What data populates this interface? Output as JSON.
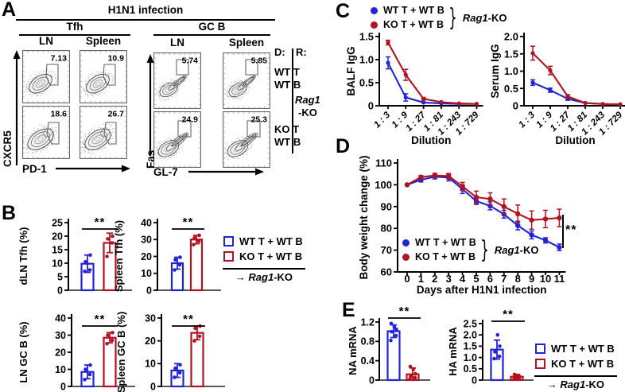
{
  "colors": {
    "wt": "#2222d8",
    "ko": "#b31220",
    "axis": "#000000",
    "baseline": "#595959"
  },
  "panel_a": {
    "label": "A",
    "title": "H1N1 infection",
    "group1": "Tfh",
    "group2": "GC B",
    "cols": [
      "LN",
      "Spleen",
      "LN",
      "Spleen"
    ],
    "axes": [
      {
        "y": "CXCR5",
        "x": "PD-1"
      },
      {
        "y": "Fas",
        "x": "GL-7"
      }
    ],
    "donor_header": "D:",
    "recipient_header": "R:",
    "row1": [
      "WT T",
      "WT B"
    ],
    "row2": [
      "KO T",
      "WT B"
    ],
    "recipient_gene": "Rag1",
    "recipient_suffix": "-KO",
    "plots": [
      {
        "name": "tfh-ln-wt",
        "kind": "tfh",
        "size": "sm",
        "value": "7.13"
      },
      {
        "name": "tfh-spleen-wt",
        "kind": "tfh",
        "size": "sm",
        "value": "10.9"
      },
      {
        "name": "gcb-ln-wt",
        "kind": "gcb",
        "size": "sm",
        "value": "5.74"
      },
      {
        "name": "gcb-spleen-wt",
        "kind": "gcb",
        "size": "sm",
        "value": "5.85"
      },
      {
        "name": "tfh-ln-ko",
        "kind": "tfh",
        "size": "lg",
        "value": "18.6"
      },
      {
        "name": "tfh-spleen-ko",
        "kind": "tfh",
        "size": "lg",
        "value": "26.7"
      },
      {
        "name": "gcb-ln-ko",
        "kind": "gcb",
        "size": "lg",
        "value": "24.9"
      },
      {
        "name": "gcb-spleen-ko",
        "kind": "gcb",
        "size": "lg",
        "value": "25.3"
      }
    ]
  },
  "panel_b": {
    "label": "B"
  },
  "panel_c": {
    "label": "C"
  },
  "panel_d": {
    "label": "D"
  },
  "panel_e": {
    "label": "E"
  },
  "legend_square": {
    "item1": "WT T + WT B",
    "item2": "KO T + WT B",
    "arrow": "→",
    "gene": "Rag1",
    "suffix": "-KO"
  },
  "legend_dot": {
    "item1": "WT T + WT B",
    "item2": "KO T + WT B",
    "brace": "}",
    "gene": "Rag1",
    "suffix": "-KO"
  },
  "chart_data": [
    {
      "id": "dln-tfh",
      "type": "bar",
      "ylabel": "dLN Tfh (%)",
      "ylim": [
        0,
        25
      ],
      "yticks": [
        "0",
        "5",
        "10",
        "15",
        "20",
        "25"
      ],
      "sig": "**",
      "series": [
        {
          "name": "WT T + WT B",
          "value": 9.8,
          "err": 3.2,
          "points": [
            7,
            7.5,
            10.5,
            13
          ]
        },
        {
          "name": "KO T + WT B",
          "value": 17.5,
          "err": 3.6,
          "points": [
            12.5,
            17.5,
            19,
            20
          ]
        }
      ]
    },
    {
      "id": "spleen-tfh",
      "type": "bar",
      "ylabel": "Spleen Tfh (%)",
      "ylim": [
        0,
        40
      ],
      "yticks": [
        "0",
        "10",
        "20",
        "30",
        "40"
      ],
      "sig": "**",
      "series": [
        {
          "name": "WT T + WT B",
          "value": 16,
          "err": 3.5,
          "points": [
            12,
            15,
            18,
            19.5
          ]
        },
        {
          "name": "KO T + WT B",
          "value": 30,
          "err": 2.5,
          "points": [
            27,
            29,
            31,
            32.5
          ]
        }
      ]
    },
    {
      "id": "ln-gcb",
      "type": "bar",
      "ylabel": "LN GC B (%)",
      "ylim": [
        0,
        40
      ],
      "yticks": [
        "0",
        "10",
        "20",
        "30",
        "40"
      ],
      "sig": "**",
      "series": [
        {
          "name": "WT T + WT B",
          "value": 8.5,
          "err": 4,
          "points": [
            4,
            7,
            10,
            12.5
          ]
        },
        {
          "name": "KO T + WT B",
          "value": 28.5,
          "err": 3,
          "points": [
            25,
            27,
            30,
            31.5
          ]
        }
      ]
    },
    {
      "id": "spleen-gcb",
      "type": "bar",
      "ylabel": "Spleen GC B (%)",
      "ylim": [
        0,
        30
      ],
      "yticks": [
        "0",
        "10",
        "20",
        "30"
      ],
      "sig": "**",
      "series": [
        {
          "name": "WT T + WT B",
          "value": 7,
          "err": 3,
          "points": [
            4,
            6,
            8,
            9.5
          ]
        },
        {
          "name": "KO T + WT B",
          "value": 23.5,
          "err": 3,
          "points": [
            20,
            22,
            25.5,
            26.5
          ]
        }
      ]
    },
    {
      "id": "balf-igg",
      "type": "line",
      "ylabel": "BALF IgG",
      "xlabel": "Dilution",
      "ylim": [
        0,
        1.5
      ],
      "yticks": [
        "0",
        "0.5",
        "1.0",
        "1.5"
      ],
      "xticklabels": [
        "1 : 3",
        "1 : 9",
        "1 : 27",
        "1 : 81",
        "1 : 243",
        "1 : 729"
      ],
      "series": [
        {
          "name": "WT T + WT B",
          "values": [
            0.93,
            0.18,
            0.07,
            0.05,
            0.04,
            0.04
          ],
          "err": [
            0.13,
            0.08,
            0.02,
            0.02,
            0.01,
            0.01
          ]
        },
        {
          "name": "KO T + WT B",
          "values": [
            1.37,
            0.67,
            0.15,
            0.08,
            0.05,
            0.04
          ],
          "err": [
            0.05,
            0.12,
            0.03,
            0.02,
            0.01,
            0.01
          ]
        }
      ]
    },
    {
      "id": "serum-igg",
      "type": "line",
      "ylabel": "Serum IgG",
      "xlabel": "Dilution",
      "ylim": [
        0,
        2
      ],
      "yticks": [
        "0",
        "0.5",
        "1.0",
        "1.5",
        "2.0"
      ],
      "xticklabels": [
        "1 : 3",
        "1 : 9",
        "1 : 27",
        "1 : 81",
        "1 : 243",
        "1 : 729"
      ],
      "series": [
        {
          "name": "WT T + WT B",
          "values": [
            0.67,
            0.45,
            0.2,
            0.08,
            0.05,
            0.04
          ],
          "err": [
            0.08,
            0.06,
            0.04,
            0.02,
            0.01,
            0.01
          ]
        },
        {
          "name": "KO T + WT B",
          "values": [
            1.52,
            1.02,
            0.27,
            0.08,
            0.05,
            0.04
          ],
          "err": [
            0.2,
            0.12,
            0.05,
            0.02,
            0.01,
            0.01
          ]
        }
      ]
    },
    {
      "id": "body-weight",
      "type": "line",
      "ylabel": "Body weight change (%)",
      "xlabel": "Days after H1N1 infection",
      "ylim": [
        60,
        110
      ],
      "yticks": [
        "60",
        "70",
        "80",
        "90",
        "100",
        "110"
      ],
      "xticklabels": [
        "0",
        "1",
        "2",
        "3",
        "4",
        "5",
        "6",
        "7",
        "8",
        "9",
        "10",
        "11"
      ],
      "sig": "**",
      "series": [
        {
          "name": "WT T + WT B",
          "values": [
            100,
            102.3,
            103.7,
            103.3,
            98,
            92.5,
            90.3,
            86.5,
            81.3,
            77,
            74.5,
            71.3
          ],
          "err": [
            0.5,
            1,
            1,
            1.5,
            2,
            1.5,
            1.8,
            1.8,
            2,
            1.8,
            1.2,
            1.5
          ]
        },
        {
          "name": "KO T + WT B",
          "values": [
            100,
            103.5,
            104.3,
            104,
            99.3,
            94.3,
            93.5,
            90,
            86.7,
            83.8,
            84.3,
            84.8
          ],
          "err": [
            0.5,
            0.8,
            1,
            1.2,
            1.8,
            2.8,
            2.8,
            3.5,
            4,
            4.2,
            4,
            4
          ]
        }
      ]
    },
    {
      "id": "na-mrna",
      "type": "bar",
      "ylabel": "NA mRNA",
      "ylim": [
        0,
        1.2
      ],
      "yticks": [
        "0",
        "0.4",
        "0.8",
        "1.2"
      ],
      "sig": "**",
      "series": [
        {
          "name": "WT T + WT B",
          "value": 1.01,
          "err": 0.13,
          "points": [
            0.82,
            0.92,
            1.0,
            1.05,
            1.1,
            1.17
          ]
        },
        {
          "name": "KO T + WT B",
          "value": 0.12,
          "err": 0.13,
          "points": [
            0.02,
            0.05,
            0.08,
            0.13,
            0.22,
            0.28
          ]
        }
      ]
    },
    {
      "id": "ha-mrna",
      "type": "bar",
      "ylabel": "HA mRNA",
      "ylim": [
        0,
        2.5
      ],
      "yticks": [
        "0",
        "0.5",
        "1.0",
        "1.5",
        "2.0",
        "2.5"
      ],
      "sig": "**",
      "series": [
        {
          "name": "WT T + WT B",
          "value": 1.35,
          "err": 0.42,
          "points": [
            0.95,
            1.05,
            1.25,
            1.5,
            2.0
          ]
        },
        {
          "name": "KO T + WT B",
          "value": 0.15,
          "err": 0.1,
          "points": [
            0.05,
            0.08,
            0.12,
            0.16,
            0.2,
            0.25
          ]
        }
      ]
    }
  ]
}
